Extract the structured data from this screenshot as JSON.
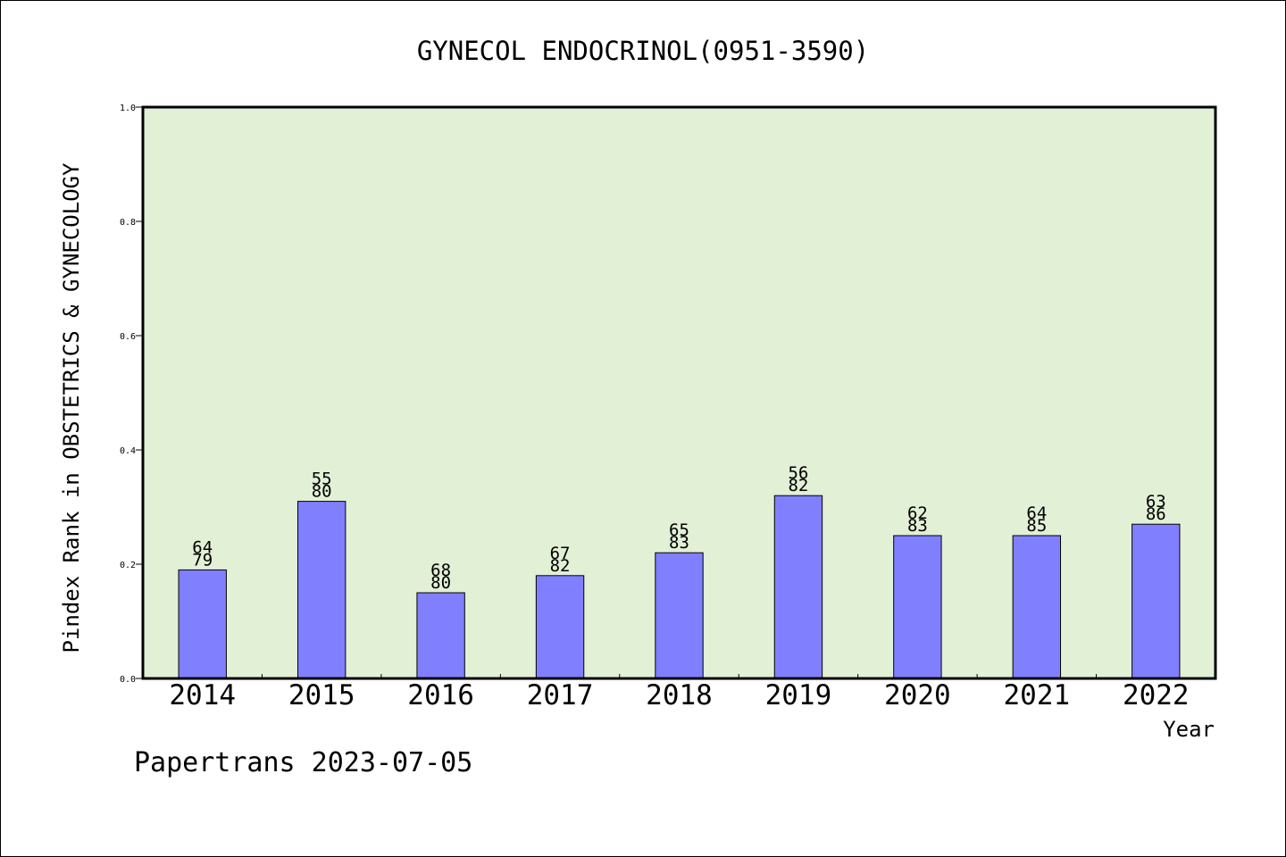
{
  "chart_data": {
    "type": "bar",
    "title": "GYNECOL ENDOCRINOL(0951-3590)",
    "xlabel": "Year",
    "ylabel": "Pindex Rank in OBSTETRICS & GYNECOLOGY",
    "ylim": [
      0,
      1.0
    ],
    "yticks": [
      "0.0",
      "0.2",
      "0.4",
      "0.6",
      "0.8",
      "1.0"
    ],
    "categories": [
      "2014",
      "2015",
      "2016",
      "2017",
      "2018",
      "2019",
      "2020",
      "2021",
      "2022"
    ],
    "values": [
      0.19,
      0.31,
      0.15,
      0.18,
      0.22,
      0.32,
      0.25,
      0.25,
      0.27
    ],
    "labels_top": [
      "64",
      "55",
      "68",
      "67",
      "65",
      "56",
      "62",
      "64",
      "63"
    ],
    "labels_bottom": [
      "79",
      "80",
      "80",
      "82",
      "83",
      "82",
      "83",
      "85",
      "86"
    ],
    "grid": false,
    "colors": {
      "plot_background": "#e2f0d6",
      "bar_fill": "#8080ff",
      "bar_stroke": "#000000"
    }
  },
  "footer": {
    "text": "Papertrans 2023-07-05"
  }
}
